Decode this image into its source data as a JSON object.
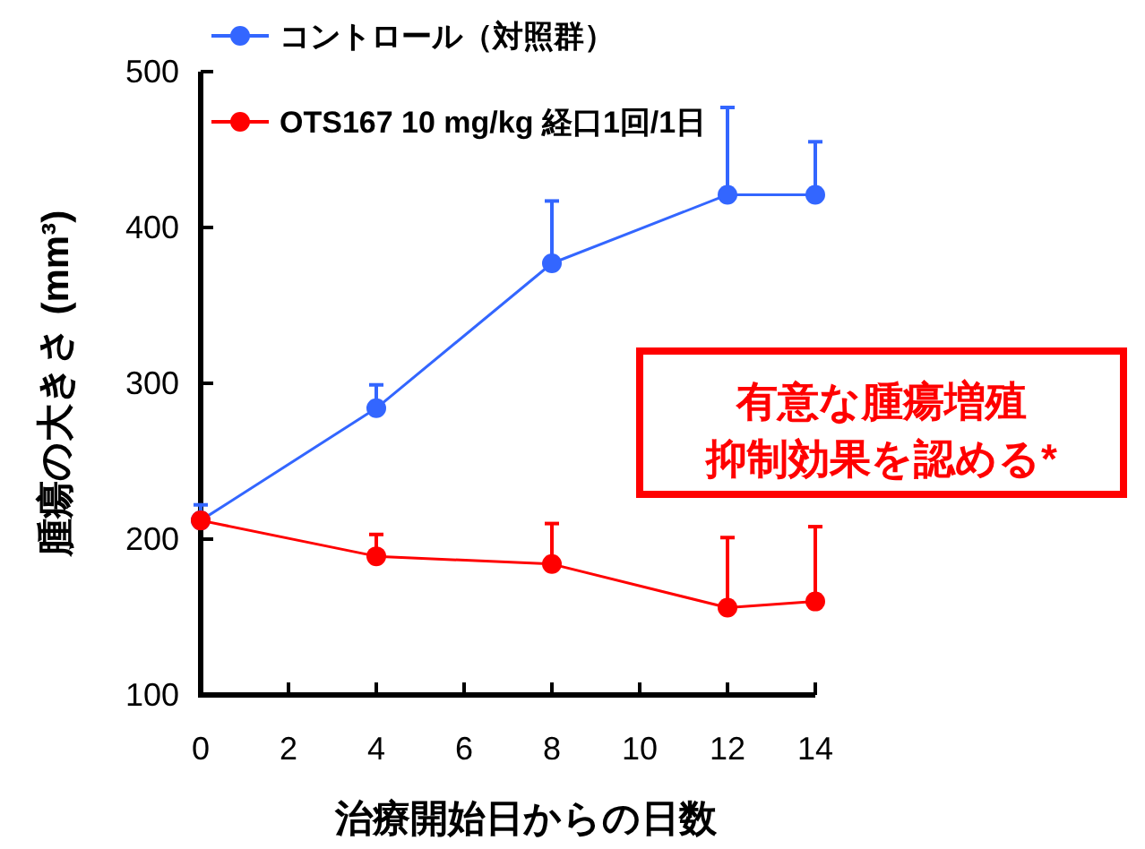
{
  "chart_data": {
    "type": "line",
    "xlabel": "治療開始日からの日数",
    "ylabel": "腫瘍の大きさ (mm³)",
    "x": [
      0,
      4,
      8,
      12,
      14
    ],
    "xlim": [
      0,
      14
    ],
    "xticks": [
      0,
      2,
      4,
      6,
      8,
      10,
      12,
      14
    ],
    "ylim": [
      100,
      500
    ],
    "yticks": [
      100,
      200,
      300,
      400,
      500
    ],
    "series": [
      {
        "name": "コントロール（対照群）",
        "color": "#3366ff",
        "values": [
          212,
          284,
          377,
          421,
          421
        ],
        "errors": [
          [
            212,
            222
          ],
          [
            284,
            299
          ],
          [
            377,
            417
          ],
          [
            421,
            477
          ],
          [
            421,
            455
          ]
        ]
      },
      {
        "name": "OTS167 10 mg/kg 経口1回/1日",
        "color": "#ff0000",
        "values": [
          212,
          189,
          184,
          156,
          160
        ],
        "errors": [
          [
            212,
            212
          ],
          [
            189,
            203
          ],
          [
            184,
            210
          ],
          [
            156,
            201
          ],
          [
            160,
            208
          ]
        ]
      }
    ],
    "annotations": [
      "有意な腫瘍増殖",
      "抑制効果を認める*"
    ],
    "marker": "circle",
    "line_style": "solid",
    "legend": "top left",
    "grid": false
  }
}
